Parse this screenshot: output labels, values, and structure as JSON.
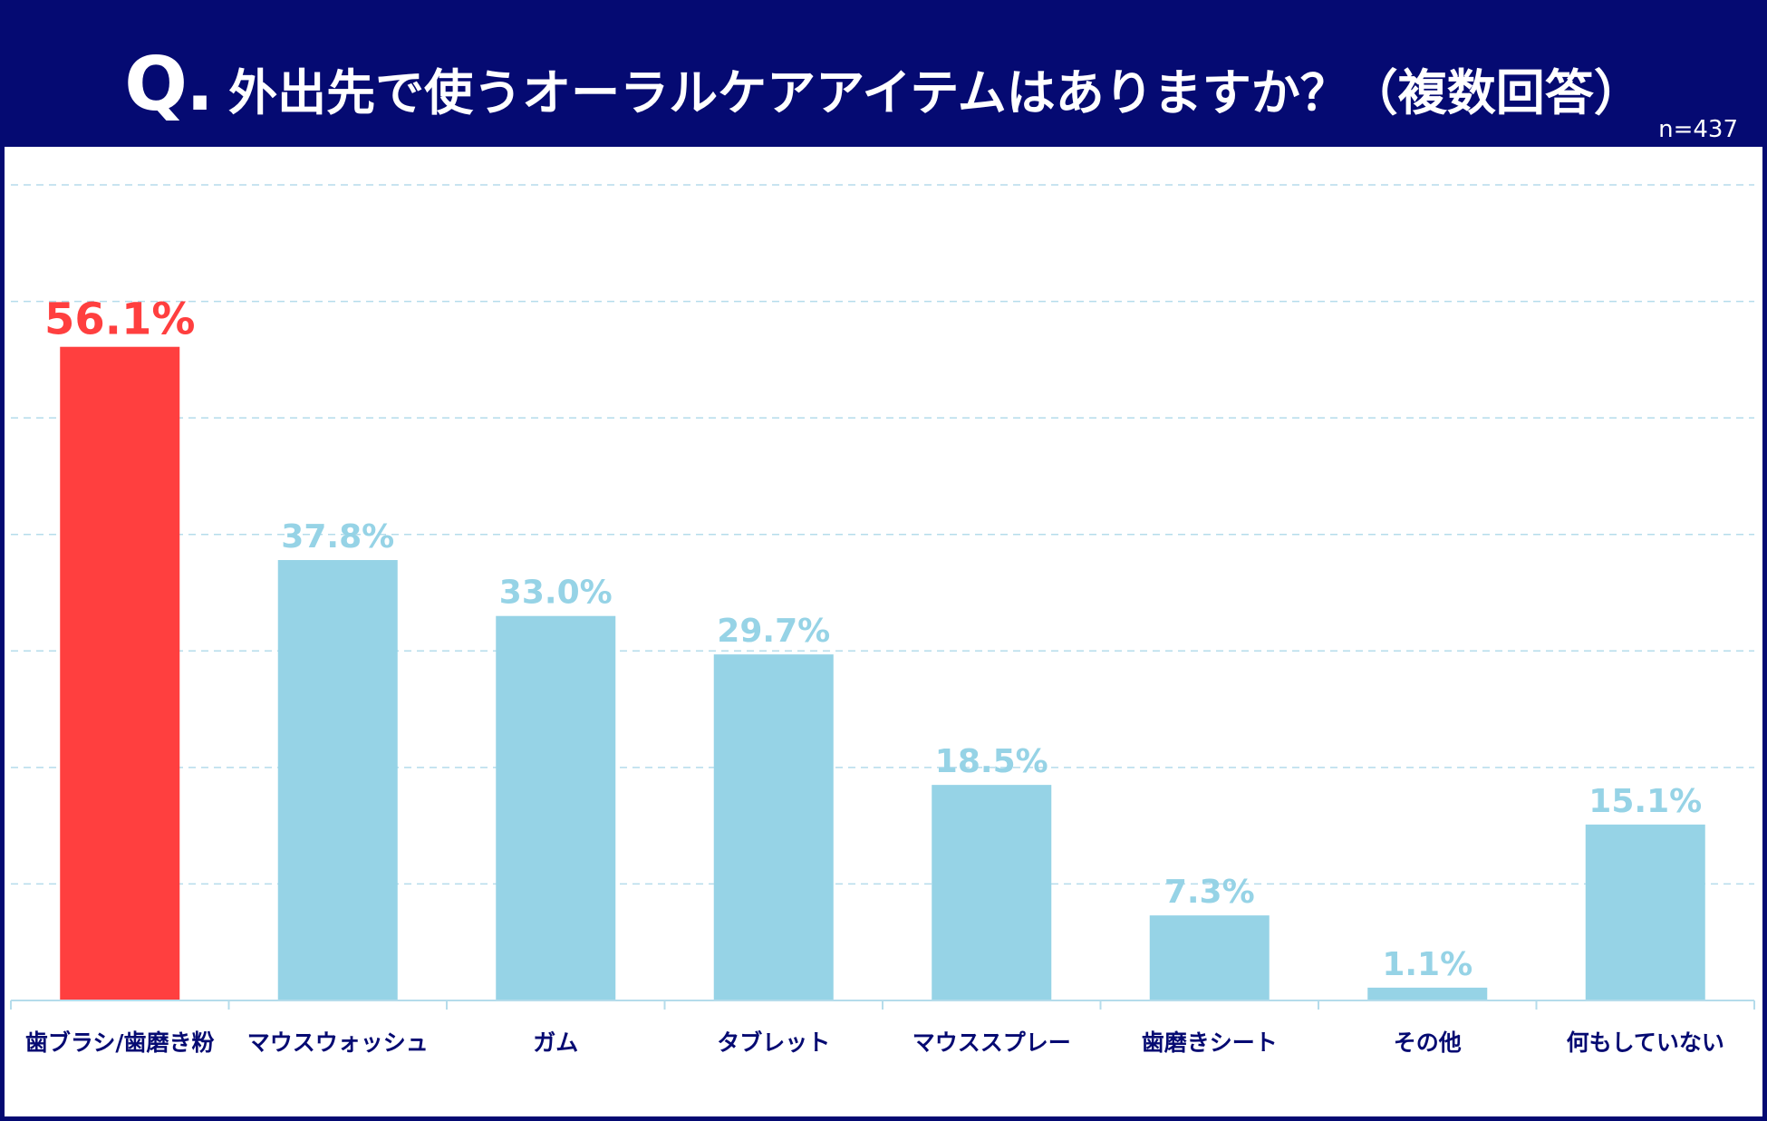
{
  "header": {
    "q_mark": "Q.",
    "question": "外出先で使うオーラルケアアイテムはありますか？（複数回答）",
    "sample_size": "n=437"
  },
  "colors": {
    "header_bg": "#050a72",
    "highlight": "#ff3f3f",
    "bar": "#96d3e6",
    "label_text": "#050a72",
    "grid": "#b5dceb",
    "axis": "#b5dceb"
  },
  "chart_data": {
    "type": "bar",
    "title": "外出先で使うオーラルケアアイテムはありますか？（複数回答）",
    "xlabel": "",
    "ylabel": "",
    "ylim": [
      0,
      70
    ],
    "grid": true,
    "unit": "%",
    "categories": [
      "歯ブラシ/歯磨き粉",
      "マウスウォッシュ",
      "ガム",
      "タブレット",
      "マウススプレー",
      "歯磨きシート",
      "その他",
      "何もしていない"
    ],
    "values": [
      56.1,
      37.8,
      33.0,
      29.7,
      18.5,
      7.3,
      1.1,
      15.1
    ],
    "labels": [
      "56.1%",
      "37.8%",
      "33.0%",
      "29.7%",
      "18.5%",
      "7.3%",
      "1.1%",
      "15.1%"
    ],
    "highlight_index": 0
  }
}
